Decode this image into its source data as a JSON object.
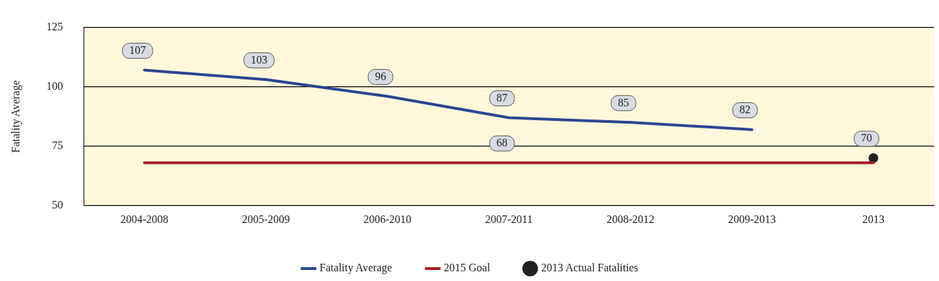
{
  "chart_data": {
    "type": "line",
    "ylabel": "Fatality Average",
    "categories": [
      "2004-2008",
      "2005-2009",
      "2006-2010",
      "2007-2011",
      "2008-2012",
      "2009-2013",
      "2013"
    ],
    "ylim": [
      50,
      125
    ],
    "yticks": [
      50,
      75,
      100,
      125
    ],
    "grid": "y",
    "legend": "bottom",
    "line_style": "solid",
    "series": [
      {
        "name": "Fatality Average",
        "marker": "none",
        "color": "#2b4590",
        "values": [
          107,
          103,
          96,
          87,
          85,
          82,
          null
        ],
        "value_labels": [
          "107",
          "103",
          "96",
          "87",
          "85",
          "82",
          null
        ]
      },
      {
        "name": "2015 Goal",
        "marker": "none",
        "color": "#a32024",
        "values": [
          68,
          68,
          68,
          68,
          68,
          68,
          68
        ],
        "value_labels": [
          null,
          null,
          null,
          "68",
          null,
          null,
          null
        ]
      },
      {
        "name": "2013 Actual Fatalities",
        "type": "scatter",
        "marker": "circle",
        "color": "#222222",
        "values": [
          null,
          null,
          null,
          null,
          null,
          null,
          70
        ],
        "value_labels": [
          null,
          null,
          null,
          null,
          null,
          null,
          "70"
        ]
      }
    ]
  }
}
